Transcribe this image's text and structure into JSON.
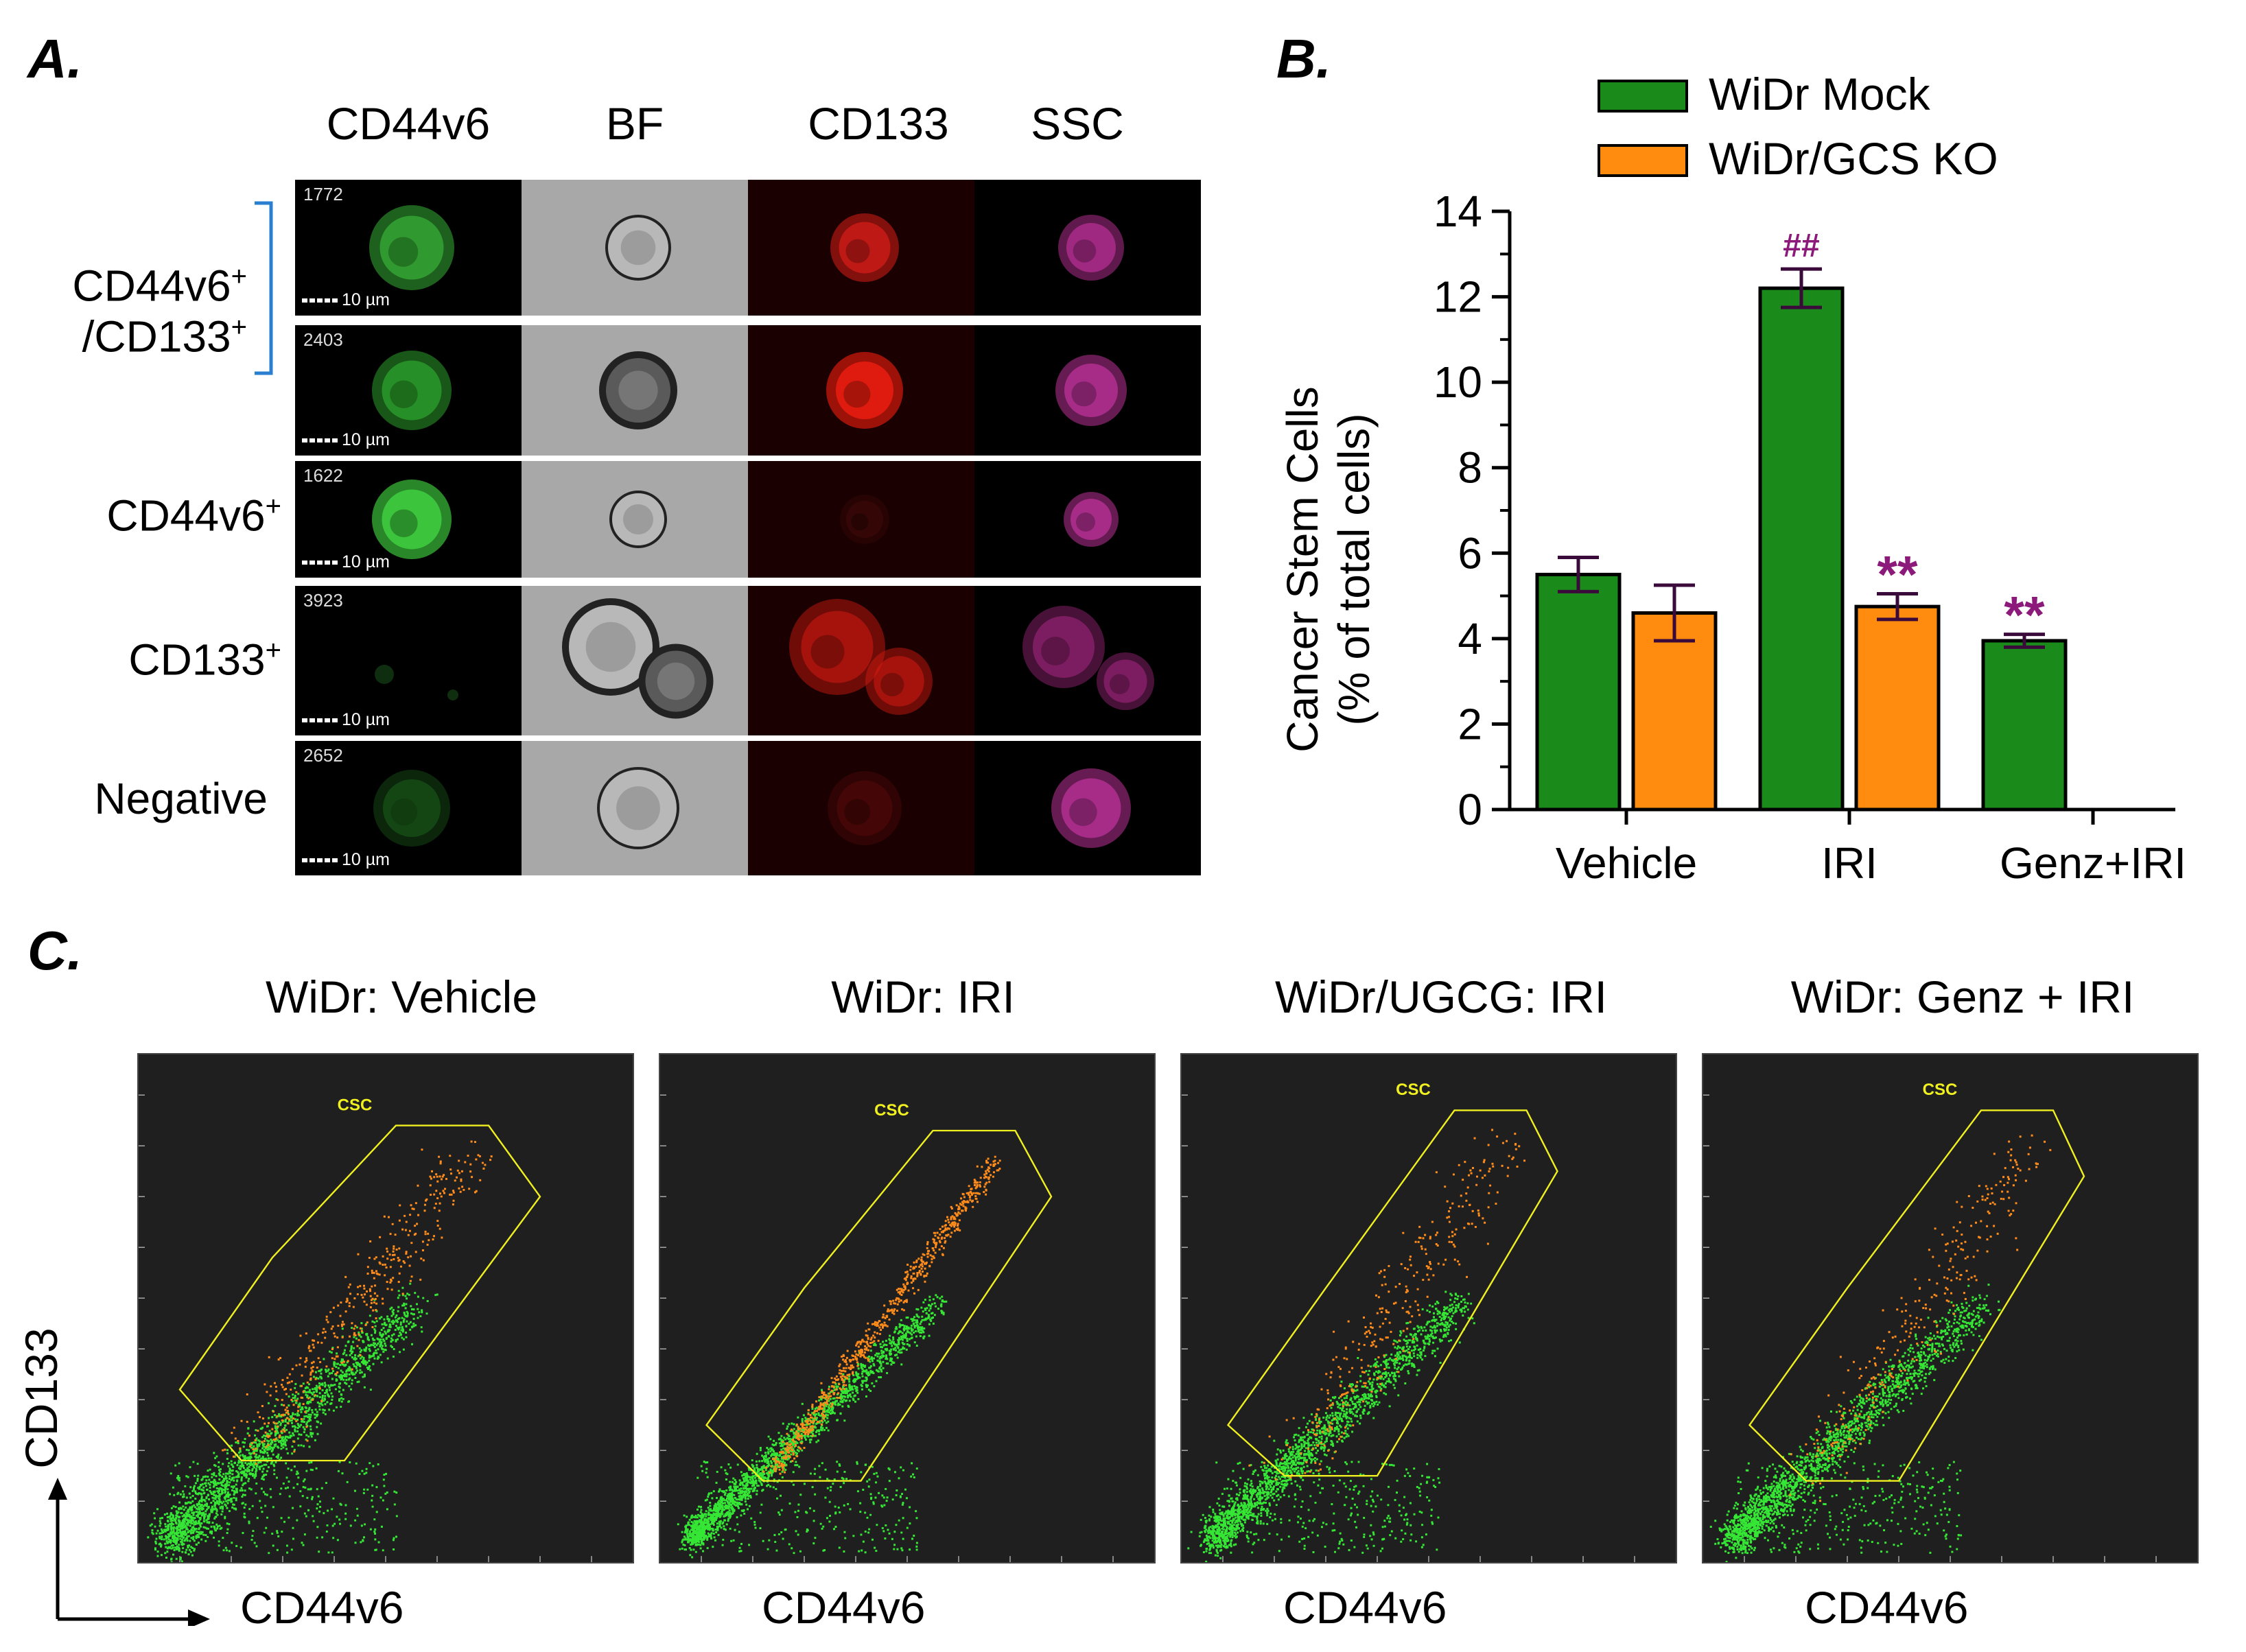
{
  "panel_a": {
    "letter": "A.",
    "columns": [
      "CD44v6",
      "BF",
      "CD133",
      "SSC"
    ],
    "rows": [
      {
        "label_main": "CD44v6",
        "label_sup": "+",
        "label_line2": "/CD133",
        "label_sup2": "+",
        "id": "1772",
        "scale": "10 µm"
      },
      {
        "id": "2403",
        "scale": "10 µm"
      },
      {
        "label_main": "CD44v6",
        "label_sup": "+",
        "id": "1622",
        "scale": "10 µm"
      },
      {
        "label_main": "CD133",
        "label_sup": "+",
        "id": "3923",
        "scale": "10 µm"
      },
      {
        "label_main": "Negative",
        "id": "2652",
        "scale": "10 µm"
      }
    ]
  },
  "panel_b": {
    "letter": "B.",
    "colors": {
      "mock": "#1a8a1a",
      "ko": "#ff8c0f",
      "annot": "#8b1a7a"
    }
  },
  "chart_data": {
    "type": "bar",
    "categories": [
      "Vehicle",
      "IRI",
      "Genz+IRI"
    ],
    "series": [
      {
        "name": "WiDr Mock",
        "values": [
          5.5,
          12.2,
          3.95
        ],
        "errors": [
          0.4,
          0.45,
          0.15
        ]
      },
      {
        "name": "WiDr/GCS KO",
        "values": [
          4.6,
          4.75,
          null
        ],
        "errors": [
          0.65,
          0.3,
          null
        ]
      }
    ],
    "annotations": [
      {
        "category": "IRI",
        "series": "WiDr Mock",
        "text": "##"
      },
      {
        "category": "IRI",
        "series": "WiDr/GCS KO",
        "text": "**"
      },
      {
        "category": "Genz+IRI",
        "series": "WiDr Mock",
        "text": "**"
      }
    ],
    "ylabel_line1": "Cancer Stem Cells",
    "ylabel_line2": "(% of total cells)",
    "ylim": [
      0,
      14
    ],
    "yticks": [
      0,
      2,
      4,
      6,
      8,
      10,
      12,
      14
    ],
    "legend_position": "top"
  },
  "panel_c": {
    "letter": "C.",
    "gate_label": "CSC",
    "x_label": "CD44v6",
    "y_label": "CD133",
    "plots": [
      {
        "title": "WiDr:  Vehicle"
      },
      {
        "title": "WiDr:  IRI"
      },
      {
        "title": "WiDr/UGCG:  IRI"
      },
      {
        "title": "WiDr:  Genz + IRI"
      }
    ]
  }
}
